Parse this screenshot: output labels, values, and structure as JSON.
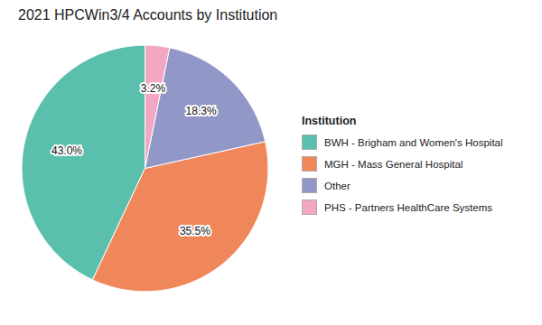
{
  "chart_data": {
    "type": "pie",
    "title": "2021 HPCWin3/4 Accounts by Institution",
    "categories": [
      "BWH - Brigham and Women's Hospital",
      "MGH - Mass General Hospital",
      "Other",
      "PHS - Partners HealthCare Systems"
    ],
    "values": [
      43.0,
      35.5,
      18.3,
      3.2
    ],
    "value_labels": [
      "43.0%",
      "35.5%",
      "18.3%",
      "3.2%"
    ],
    "data_labels": true,
    "colors": [
      "#5bbfad",
      "#f0875a",
      "#9198c8",
      "#f4a7c3"
    ],
    "legend": "right",
    "legend_title": "Institution"
  }
}
